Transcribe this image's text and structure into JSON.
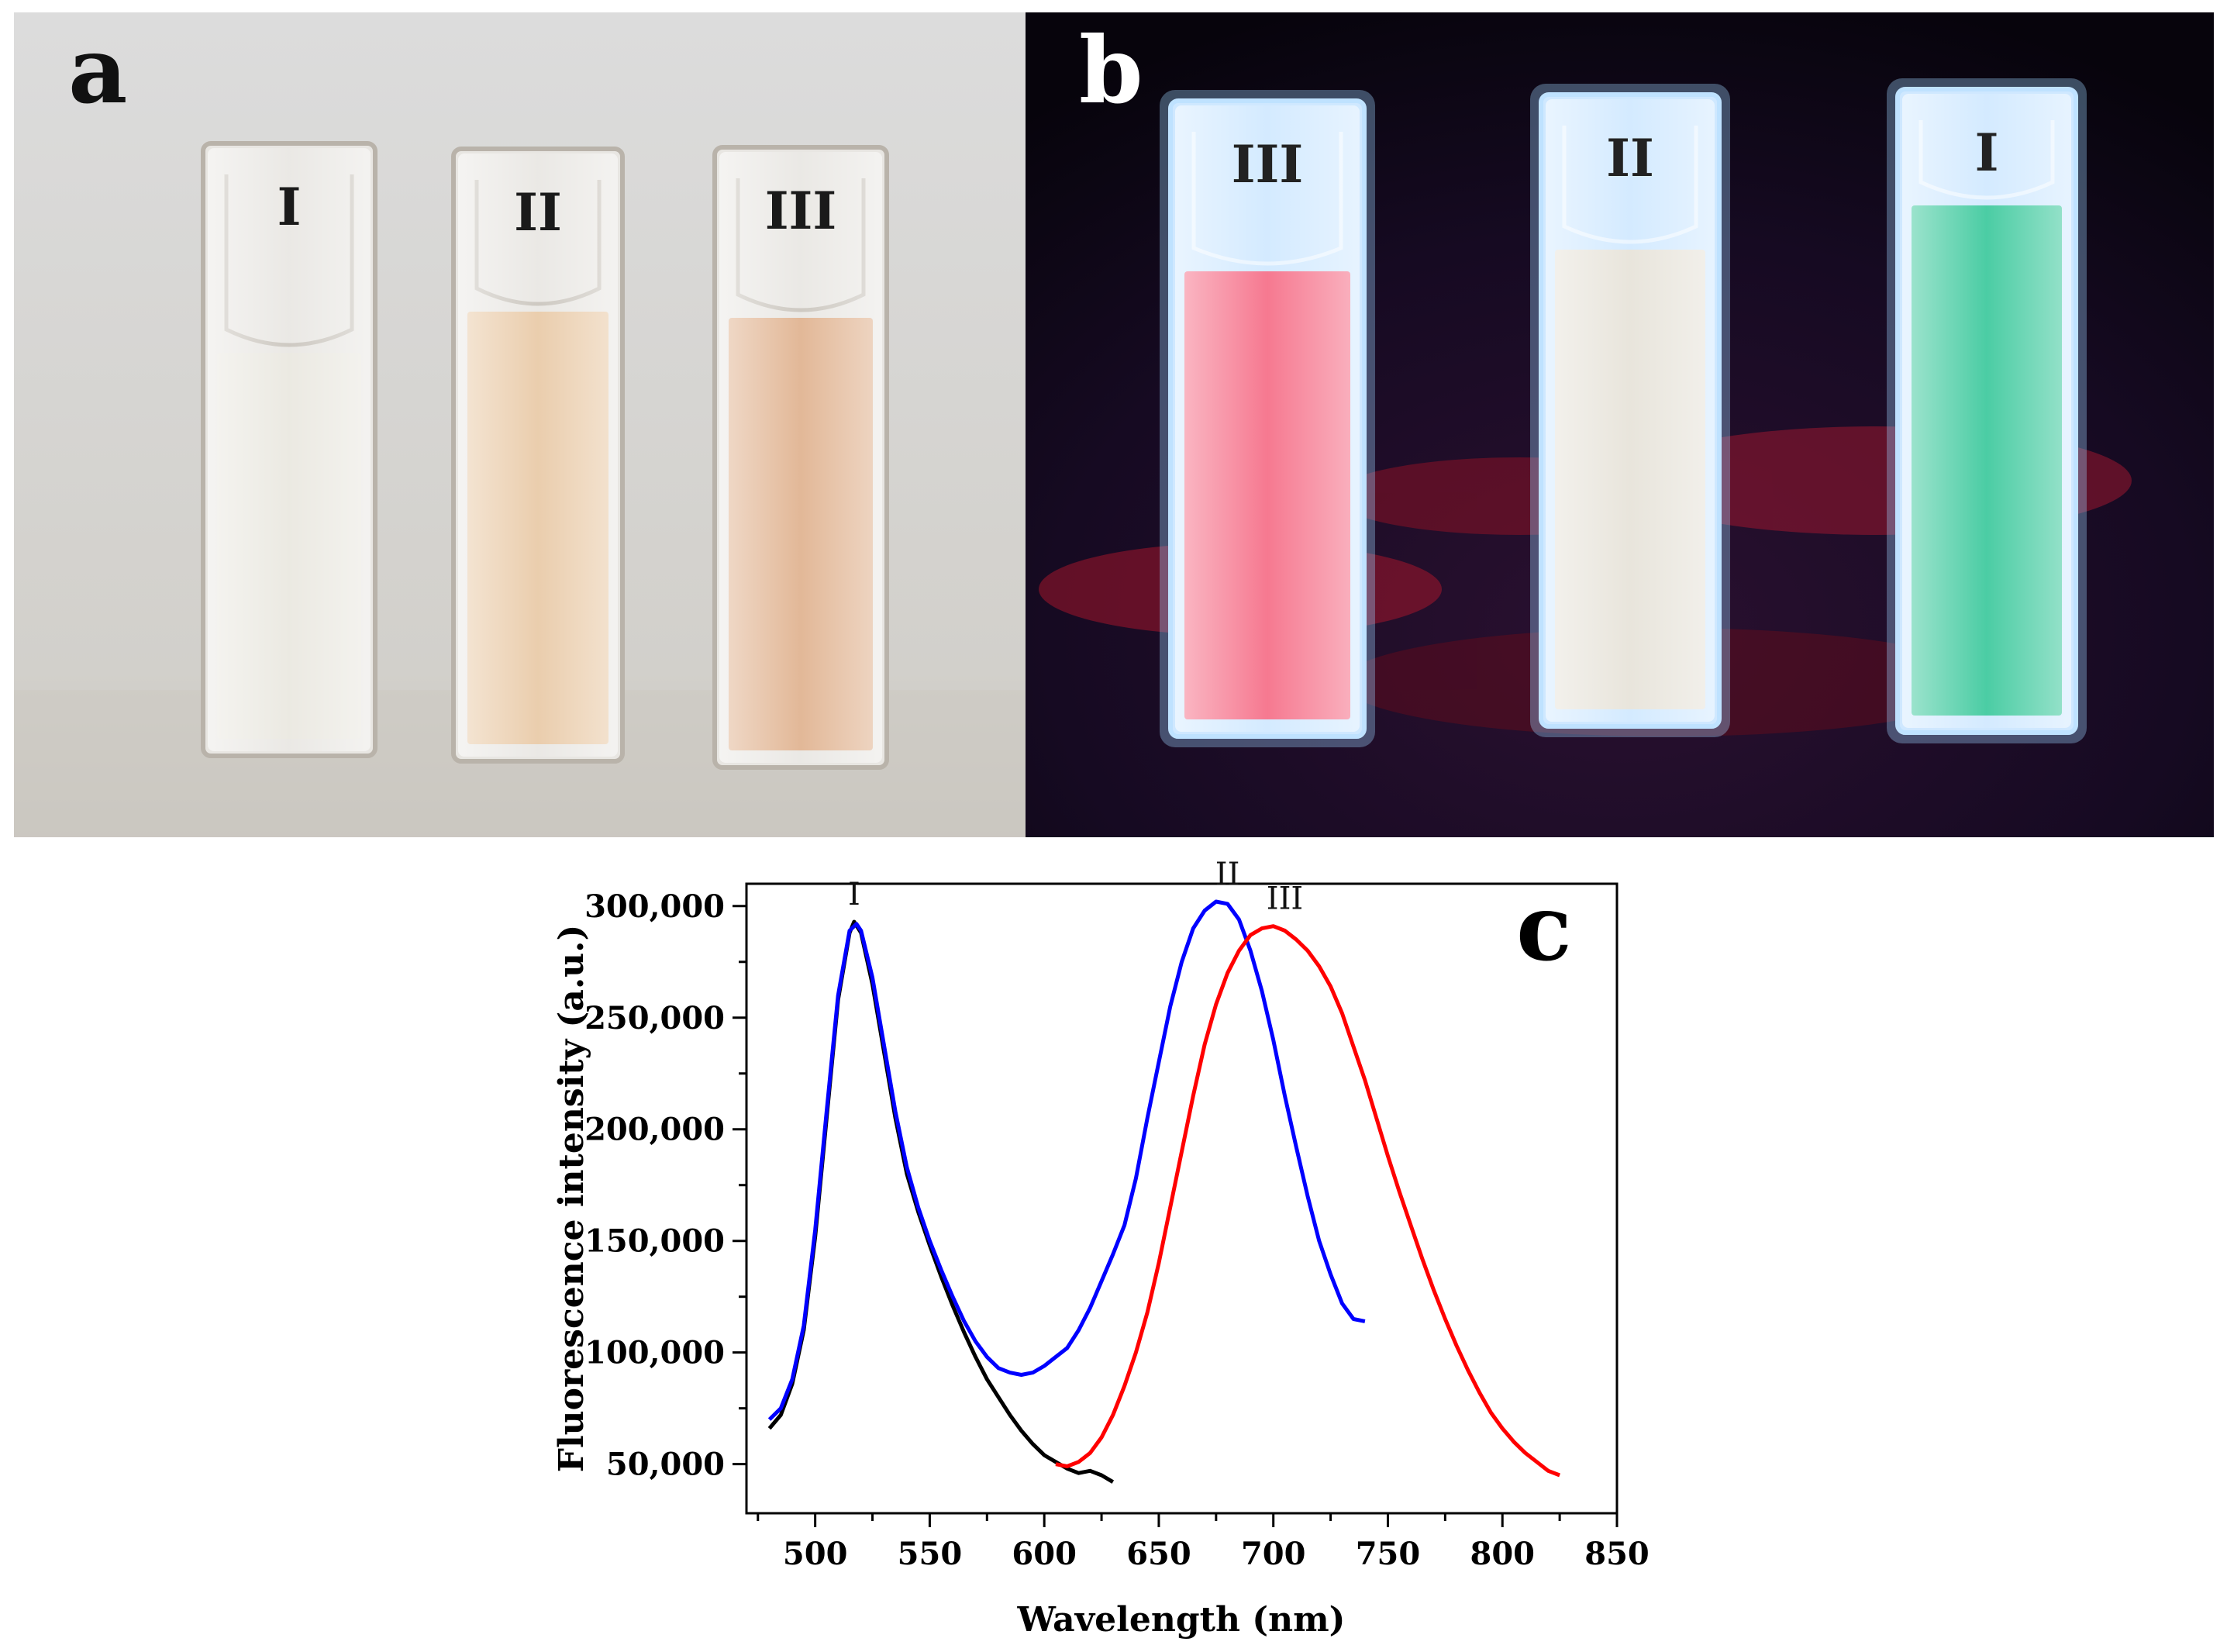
{
  "panels": {
    "a": {
      "letter": "a",
      "cuvettes": [
        {
          "label": "I",
          "color": "#e9e7df"
        },
        {
          "label": "II",
          "color": "#e8c8a4"
        },
        {
          "label": "III",
          "color": "#dfb08c"
        }
      ]
    },
    "b": {
      "letter": "b",
      "cuvettes": [
        {
          "label": "III",
          "color": "#f56a84"
        },
        {
          "label": "II",
          "color": "#e6e2d8"
        },
        {
          "label": "I",
          "color": "#37c79a"
        }
      ]
    },
    "c": {
      "letter": "c"
    }
  },
  "chart_data": {
    "type": "line",
    "title": "",
    "xlabel": "Wavelength (nm)",
    "ylabel": "Fluorescence intensity (a.u.)",
    "xlim": [
      470,
      850
    ],
    "ylim": [
      28000,
      310000
    ],
    "xticks": [
      500,
      550,
      600,
      650,
      700,
      750,
      800,
      850
    ],
    "yticks": [
      50000,
      100000,
      150000,
      200000,
      250000,
      300000
    ],
    "ytick_labels": [
      "50,000",
      "100,000",
      "150,000",
      "200,000",
      "250,000",
      "300,000"
    ],
    "grid": false,
    "legend": false,
    "series": [
      {
        "color": "#000000",
        "x": [
          480,
          485,
          490,
          495,
          500,
          505,
          510,
          515,
          517,
          520,
          525,
          530,
          535,
          540,
          545,
          550,
          555,
          560,
          565,
          570,
          575,
          580,
          585,
          590,
          595,
          600,
          605,
          610,
          615,
          620,
          625,
          630
        ],
        "y": [
          66000,
          72000,
          86000,
          110000,
          152000,
          205000,
          258000,
          288000,
          293000,
          288000,
          265000,
          235000,
          205000,
          180000,
          163000,
          148000,
          134000,
          121000,
          109000,
          98000,
          88000,
          80000,
          72000,
          65000,
          59000,
          54000,
          51000,
          48000,
          46000,
          47000,
          45000,
          42000
        ]
      },
      {
        "color": "#0000ff",
        "x": [
          480,
          485,
          490,
          495,
          500,
          505,
          510,
          515,
          518,
          520,
          525,
          530,
          535,
          540,
          545,
          550,
          555,
          560,
          565,
          570,
          575,
          580,
          585,
          590,
          595,
          600,
          605,
          610,
          615,
          620,
          625,
          630,
          635,
          640,
          645,
          650,
          655,
          660,
          665,
          670,
          675,
          680,
          685,
          690,
          695,
          700,
          705,
          710,
          715,
          720,
          725,
          730,
          735,
          740
        ],
        "y": [
          70000,
          75000,
          88000,
          112000,
          155000,
          208000,
          260000,
          289000,
          292000,
          289000,
          268000,
          238000,
          208000,
          183000,
          165000,
          150000,
          137000,
          125000,
          114000,
          105000,
          98000,
          93000,
          91000,
          90000,
          91000,
          94000,
          98000,
          102000,
          110000,
          120000,
          132000,
          144000,
          157000,
          178000,
          205000,
          230000,
          255000,
          275000,
          290000,
          298000,
          302000,
          301000,
          294000,
          280000,
          262000,
          240000,
          215000,
          192000,
          170000,
          150000,
          135000,
          122000,
          115000,
          114000
        ]
      },
      {
        "color": "#ff0000",
        "x": [
          605,
          610,
          615,
          620,
          625,
          630,
          635,
          640,
          645,
          650,
          655,
          660,
          665,
          670,
          675,
          680,
          685,
          690,
          695,
          700,
          705,
          710,
          715,
          720,
          725,
          730,
          735,
          740,
          745,
          750,
          755,
          760,
          765,
          770,
          775,
          780,
          785,
          790,
          795,
          800,
          805,
          810,
          815,
          820,
          825
        ],
        "y": [
          50000,
          49000,
          51000,
          55000,
          62000,
          72000,
          85000,
          100000,
          118000,
          140000,
          165000,
          190000,
          215000,
          238000,
          256000,
          270000,
          280000,
          287000,
          290000,
          291000,
          289000,
          285000,
          280000,
          273000,
          264000,
          252000,
          237000,
          222000,
          205000,
          188000,
          172000,
          157000,
          142000,
          128000,
          115000,
          103000,
          92000,
          82000,
          73000,
          66000,
          60000,
          55000,
          51000,
          47000,
          45000
        ]
      }
    ],
    "annotations": [
      {
        "text": "I",
        "x": 517,
        "y": 293000
      },
      {
        "text": "II",
        "x": 680,
        "y": 302000
      },
      {
        "text": "III",
        "x": 705,
        "y": 291000
      }
    ]
  }
}
